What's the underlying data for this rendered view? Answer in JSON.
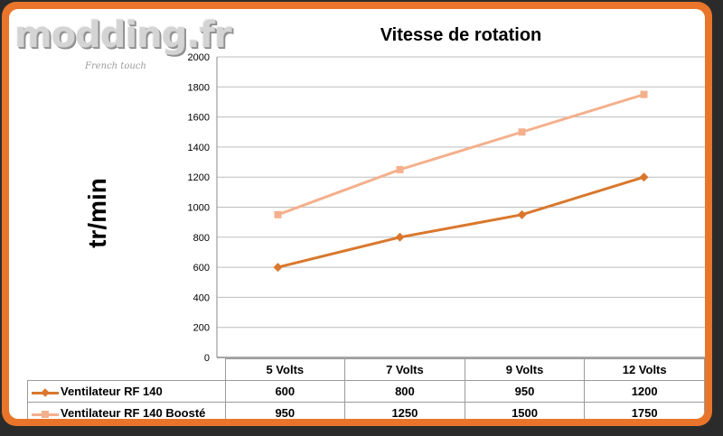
{
  "logo": {
    "text": "modding.fr",
    "tagline": "French touch"
  },
  "chart_data": {
    "type": "line",
    "title": "Vitesse de rotation",
    "ylabel": "tr/min",
    "xlabel": "",
    "categories": [
      "5 Volts",
      "7 Volts",
      "9 Volts",
      "12 Volts"
    ],
    "ylim": [
      0,
      2000
    ],
    "yticks": [
      0,
      200,
      400,
      600,
      800,
      1000,
      1200,
      1400,
      1600,
      1800,
      2000
    ],
    "grid": true,
    "legend": "data-table",
    "series": [
      {
        "name": "Ventilateur RF 140",
        "values": [
          600,
          800,
          950,
          1200
        ],
        "color": "#d9782d",
        "marker": "diamond"
      },
      {
        "name": "Ventilateur RF 140 Boosté",
        "values": [
          950,
          1250,
          1500,
          1750
        ],
        "color": "#f4b08c",
        "marker": "square"
      }
    ]
  },
  "colors": {
    "frame": "#e8752a",
    "background": "#2b2b2b"
  }
}
